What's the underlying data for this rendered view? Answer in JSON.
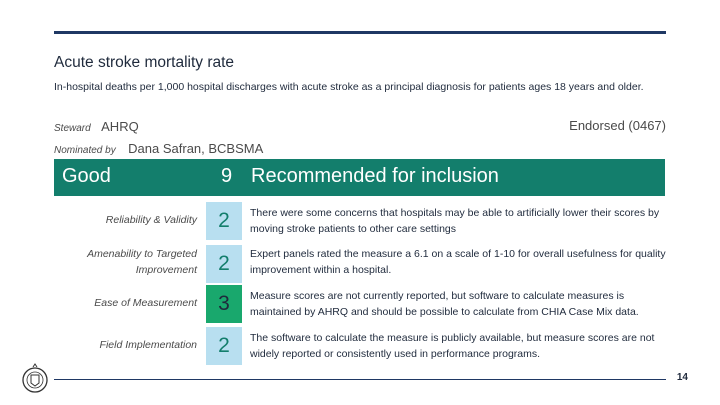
{
  "title": "Acute stroke mortality rate",
  "description": "In-hospital deaths per 1,000 hospital discharges with acute stroke as a principal diagnosis for patients ages 18 years and older.",
  "steward_label": "Steward",
  "steward_value": "AHRQ",
  "endorsed": "Endorsed (0467)",
  "nominated_label": "Nominated by",
  "nominated_value": "Dana Safran, BCBSMA",
  "banner": {
    "rating": "Good",
    "total_score": "9",
    "recommendation": "Recommended for inclusion"
  },
  "criteria": [
    {
      "label": "Reliability & Validity",
      "score": "2",
      "note": "There were some concerns that hospitals may be able to artificially lower their scores by moving stroke patients to other care settings"
    },
    {
      "label": "Amenability to Targeted Improvement",
      "score": "2",
      "note": "Expert panels rated the measure a 6.1 on a scale of 1-10 for overall usefulness for quality improvement within a hospital."
    },
    {
      "label": "Ease of Measurement",
      "score": "3",
      "note": "Measure scores are not currently reported, but software to calculate measures is maintained by AHRQ and should be possible to calculate from CHIA Case Mix data."
    },
    {
      "label": "Field Implementation",
      "score": "2",
      "note": "The software to calculate the measure is publicly available, but measure scores are not widely reported or consistently used in performance programs."
    }
  ],
  "page_number": "14",
  "colors": {
    "banner": "#137e6c",
    "score_box": "#b8dff0",
    "score_box_highlight": "#19a86d",
    "rule": "#1f3864"
  },
  "icons": {
    "seal": "seal-icon"
  }
}
